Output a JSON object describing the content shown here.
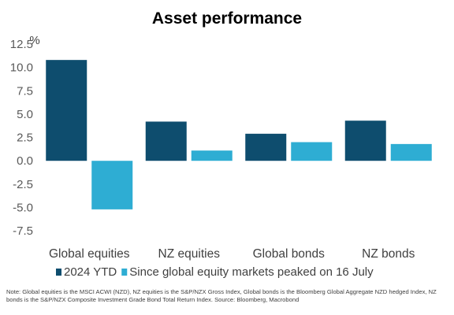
{
  "chart_data": {
    "type": "bar",
    "title": "Asset performance",
    "ylabel": "%",
    "categories": [
      "Global equities",
      "NZ equities",
      "Global bonds",
      "NZ bonds"
    ],
    "series": [
      {
        "name": "2024 YTD",
        "values": [
          10.8,
          4.2,
          2.9,
          4.3
        ],
        "color": "#0e4d6e"
      },
      {
        "name": "Since global equity markets peaked on 16 July",
        "values": [
          -5.2,
          1.1,
          2.0,
          1.8
        ],
        "color": "#2eadd3"
      }
    ],
    "ylim": [
      -8.5,
      12.5
    ],
    "yticks": [
      12.5,
      10.0,
      7.5,
      5.0,
      2.5,
      0.0,
      -2.5,
      -5.0,
      -7.5
    ],
    "ytick_labels": [
      "12.5",
      "10.0",
      "7.5",
      "5.0",
      "2.5",
      "0.0",
      "-2.5",
      "-5.0",
      "-7.5"
    ],
    "grid": false,
    "legend_position": "bottom",
    "note": "Note: Global equities is the MSCI ACWI (NZD), NZ equities is the S&P/NZX Gross Index, Global bonds is the Bloomberg Global Aggregate NZD hedged Index, NZ bonds is the S&P/NZX Composite Investment Grade Bond Total Return Index.  Source: Bloomberg, Macrobond"
  }
}
